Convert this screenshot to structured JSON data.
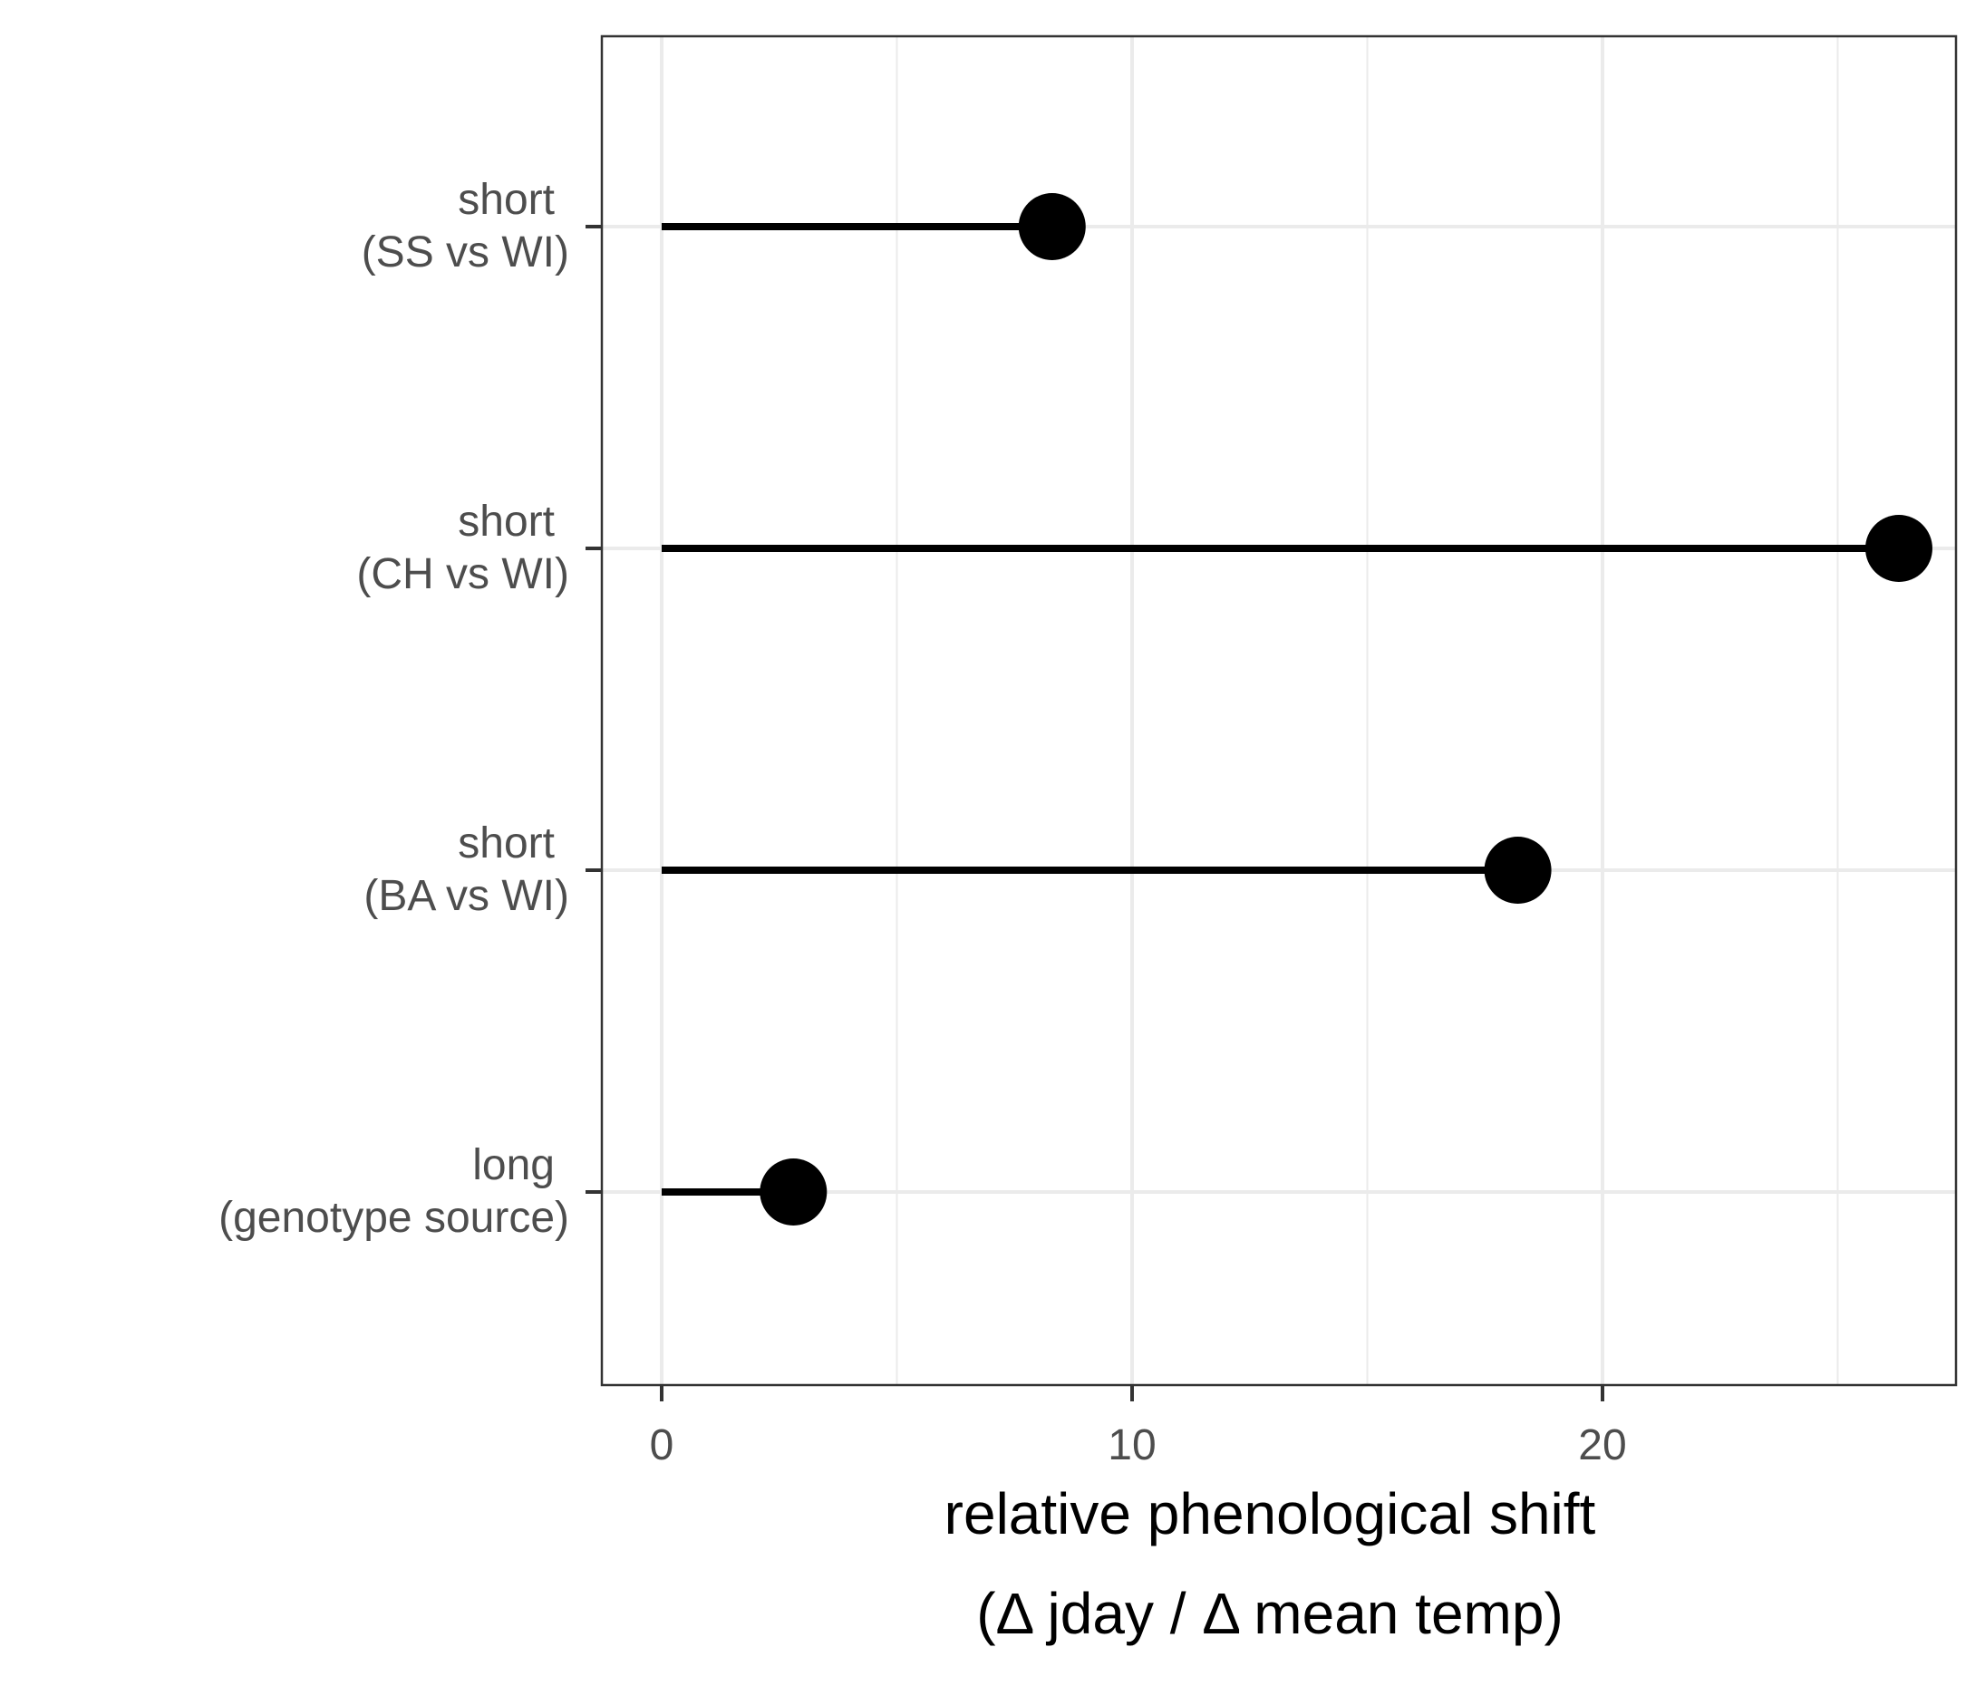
{
  "chart_data": {
    "type": "lollipop",
    "categories": [
      {
        "line1": "short",
        "line2": "(SS vs WI)"
      },
      {
        "line1": "short",
        "line2": "(CH vs WI)"
      },
      {
        "line1": "short",
        "line2": "(BA vs WI)"
      },
      {
        "line1": "long",
        "line2": "(genotype source)"
      }
    ],
    "values": [
      8.3,
      26.3,
      18.2,
      2.8
    ],
    "xlabel_line1": "relative phenological shift",
    "xlabel_line2": "(Δ jday / Δ mean temp)",
    "ylabel": "",
    "xlim": [
      -1.3,
      27.5
    ],
    "x_ticks": [
      0,
      10,
      20
    ],
    "x_minor_ticks": [
      5,
      15,
      25
    ],
    "grid": true,
    "colors": {
      "mark": "#000000",
      "grid": "#ebebeb",
      "panel_border": "#333333",
      "tick_text": "#4d4d4d"
    }
  }
}
